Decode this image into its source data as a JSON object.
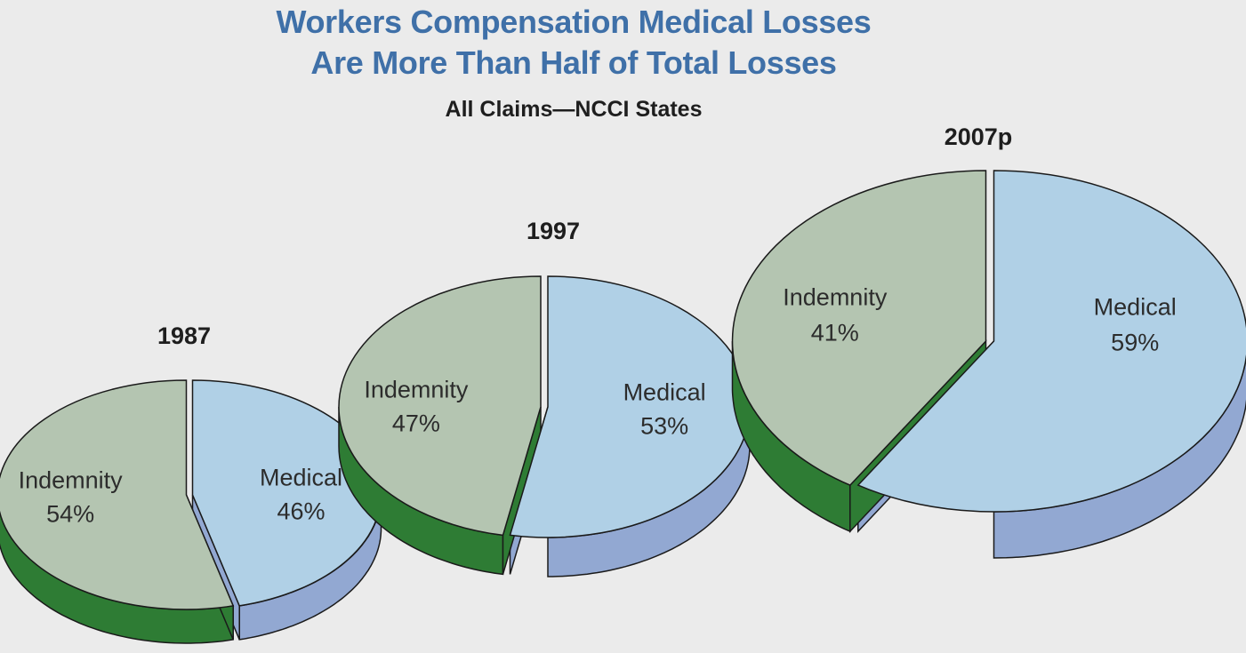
{
  "title_line1": "Workers Compensation Medical Losses",
  "title_line2": "Are More Than Half of Total Losses",
  "subtitle": "All Claims—NCCI States",
  "colors": {
    "indemnity_top": "#b4c5b1",
    "indemnity_side": "#2e7c34",
    "medical_top": "#b0d0e6",
    "medical_side": "#92a8d2",
    "outline": "#1a1a1a"
  },
  "chart_data": [
    {
      "type": "pie",
      "year": "1987",
      "slices": [
        {
          "label": "Indemnity",
          "pct_text": "54%",
          "value": 54
        },
        {
          "label": "Medical",
          "pct_text": "46%",
          "value": 46
        }
      ]
    },
    {
      "type": "pie",
      "year": "1997",
      "slices": [
        {
          "label": "Indemnity",
          "pct_text": "47%",
          "value": 47
        },
        {
          "label": "Medical",
          "pct_text": "53%",
          "value": 53
        }
      ]
    },
    {
      "type": "pie",
      "year": "2007p",
      "slices": [
        {
          "label": "Indemnity",
          "pct_text": "41%",
          "value": 41
        },
        {
          "label": "Medical",
          "pct_text": "59%",
          "value": 59
        }
      ]
    }
  ]
}
